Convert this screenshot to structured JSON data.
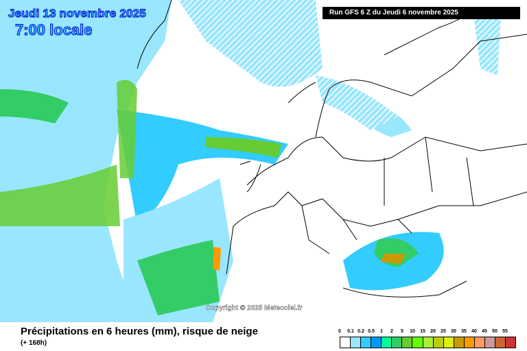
{
  "header": {
    "date": "Jeudi 13 novembre 2025",
    "time": "7:00 locale",
    "run": "Run GFS 6 Z du Jeudi 6 novembre 2025"
  },
  "map": {
    "copyright": "Copyright © 2025 Meteociel.fr"
  },
  "footer": {
    "title": "Précipitations en 6 heures (mm), risque de neige",
    "subtitle": "(+ 168h)"
  },
  "legend": {
    "labels": [
      "0",
      "0.1",
      "0.2",
      "0.5",
      "1",
      "2",
      "5",
      "10",
      "15",
      "20",
      "25",
      "30",
      "35",
      "40",
      "45",
      "50",
      "55"
    ],
    "colors": [
      "#ffffff",
      "#99e6ff",
      "#33ccff",
      "#0099ff",
      "#00ff99",
      "#33cc66",
      "#66cc33",
      "#66ff00",
      "#aaee33",
      "#bbcc11",
      "#ddee11",
      "#cc9900",
      "#ff9900",
      "#ff9966",
      "#cc9999",
      "#cc6633",
      "#cc3333"
    ]
  }
}
